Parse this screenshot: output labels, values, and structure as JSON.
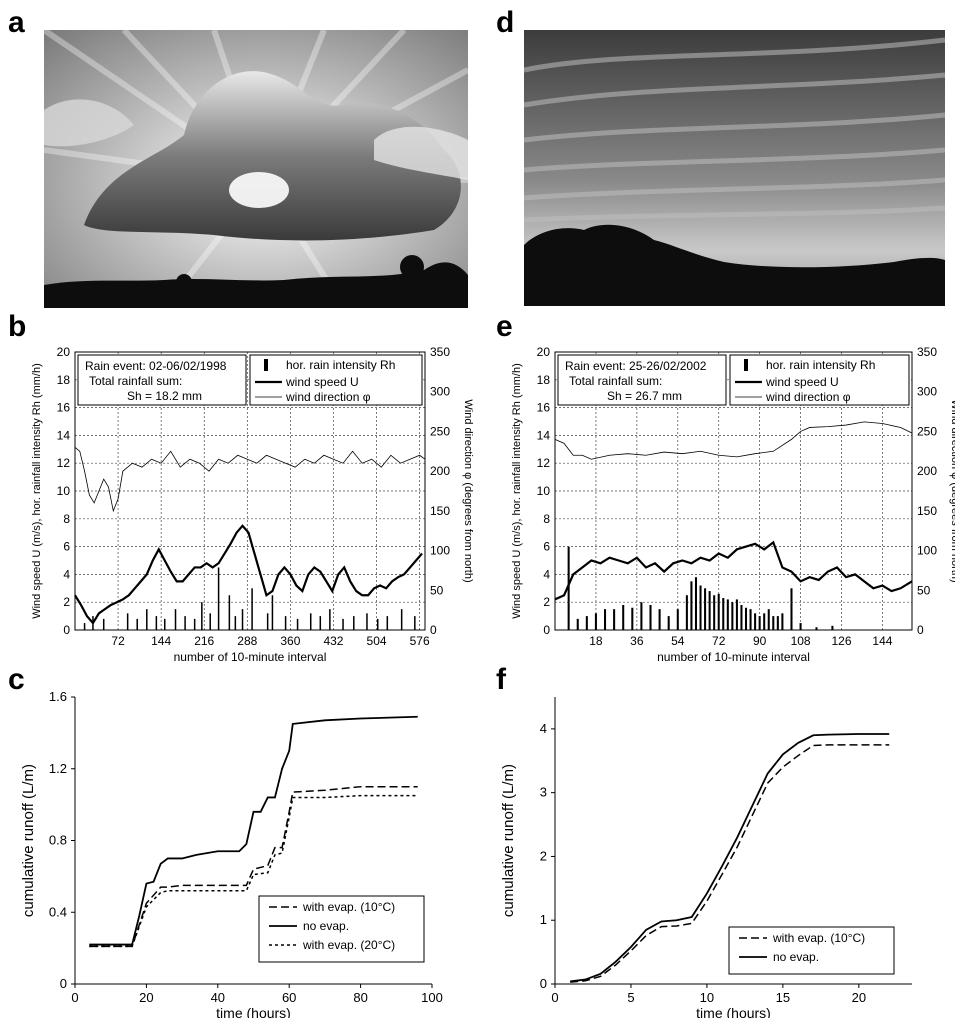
{
  "panel_letters": {
    "a": "a",
    "b": "b",
    "c": "c",
    "d": "d",
    "e": "e",
    "f": "f"
  },
  "photos": {
    "a": {
      "description_icon": "sky-with-sunrays-photo"
    },
    "d": {
      "description_icon": "stratus-cloud-sky-photo"
    }
  },
  "colors": {
    "ink": "#000000",
    "grid": "#444444",
    "bg": "#ffffff"
  },
  "chart_data": [
    {
      "id": "b",
      "type": "line",
      "xlabel": "number of 10-minute interval",
      "ylabel": "Wind speed U (m/s), hor. rainfall intensity Rh (mm/h)",
      "y2label": "Wind direction φ (degrees from north)",
      "xlim": [
        0,
        585
      ],
      "ylim": [
        0,
        20
      ],
      "y2lim": [
        0,
        350
      ],
      "xticks": [
        72,
        144,
        216,
        288,
        360,
        432,
        504,
        576
      ],
      "yticks": [
        0,
        2,
        4,
        6,
        8,
        10,
        12,
        14,
        16,
        18,
        20
      ],
      "y2ticks": [
        0,
        50,
        100,
        150,
        200,
        250,
        300,
        350
      ],
      "grid": true,
      "info_box": [
        "Rain event: 02-06/02/1998",
        "Total rainfall sum:",
        "Sh = 18.2 mm"
      ],
      "legend": [
        "hor. rain intensity Rh",
        "wind speed U",
        "wind direction φ"
      ],
      "series": [
        {
          "name": "wind speed U",
          "x": [
            0,
            10,
            20,
            30,
            40,
            50,
            60,
            70,
            80,
            90,
            100,
            110,
            120,
            130,
            140,
            150,
            160,
            170,
            180,
            190,
            200,
            210,
            220,
            230,
            240,
            250,
            260,
            270,
            280,
            290,
            300,
            310,
            320,
            330,
            340,
            350,
            360,
            370,
            380,
            390,
            400,
            410,
            420,
            430,
            440,
            450,
            460,
            470,
            480,
            490,
            500,
            510,
            520,
            530,
            540,
            550,
            560,
            570,
            580
          ],
          "y": [
            2.5,
            1.8,
            1.0,
            0.5,
            1.2,
            1.5,
            1.8,
            2.0,
            2.2,
            2.5,
            3.0,
            3.5,
            4.0,
            5.0,
            5.8,
            5.0,
            4.2,
            3.5,
            3.5,
            4.0,
            4.5,
            4.5,
            4.8,
            4.5,
            4.8,
            5.5,
            6.2,
            7.0,
            7.5,
            7.0,
            5.5,
            4.0,
            2.5,
            2.8,
            4.0,
            4.5,
            4.0,
            3.2,
            2.8,
            4.0,
            4.5,
            4.2,
            3.5,
            2.8,
            4.0,
            4.5,
            3.5,
            2.8,
            2.5,
            2.5,
            3.0,
            3.2,
            3.0,
            3.5,
            3.8,
            4.0,
            4.5,
            5.0,
            5.5
          ]
        },
        {
          "name": "wind direction φ",
          "x": [
            0,
            8,
            16,
            24,
            32,
            40,
            48,
            56,
            64,
            72,
            80,
            96,
            112,
            128,
            144,
            160,
            176,
            192,
            208,
            224,
            240,
            256,
            272,
            288,
            304,
            320,
            336,
            352,
            368,
            384,
            400,
            416,
            432,
            448,
            464,
            480,
            496,
            512,
            528,
            544,
            560,
            576,
            585
          ],
          "y": [
            230,
            225,
            200,
            170,
            160,
            175,
            190,
            180,
            150,
            165,
            200,
            210,
            205,
            215,
            210,
            225,
            205,
            215,
            210,
            200,
            215,
            210,
            220,
            215,
            210,
            220,
            215,
            210,
            205,
            215,
            210,
            220,
            215,
            210,
            225,
            210,
            215,
            205,
            220,
            210,
            215,
            220,
            215
          ]
        },
        {
          "name": "hor. rain intensity Rh",
          "x": [
            16,
            30,
            48,
            88,
            104,
            120,
            136,
            150,
            168,
            184,
            200,
            212,
            226,
            240,
            258,
            268,
            280,
            296,
            322,
            330,
            352,
            372,
            394,
            410,
            426,
            448,
            466,
            488,
            506,
            522,
            546,
            568
          ],
          "y": [
            0.5,
            1.0,
            0.8,
            1.2,
            0.8,
            1.5,
            1.0,
            0.8,
            1.5,
            1.0,
            0.8,
            2.0,
            1.2,
            4.5,
            2.5,
            1.0,
            1.5,
            3.0,
            1.2,
            2.5,
            1.0,
            0.8,
            1.2,
            1.0,
            1.5,
            0.8,
            1.0,
            1.2,
            0.8,
            1.0,
            1.5,
            1.0
          ]
        }
      ]
    },
    {
      "id": "c",
      "type": "line",
      "xlabel": "time (hours)",
      "ylabel": "cumulative runoff (L/m)",
      "xlim": [
        0,
        100
      ],
      "ylim": [
        0,
        1.6
      ],
      "xticks": [
        0,
        20,
        40,
        60,
        80,
        100
      ],
      "yticks": [
        0,
        0.4,
        0.8,
        1.2,
        1.6
      ],
      "grid": false,
      "series": [
        {
          "name": "with evap. (10°C)",
          "x": [
            4,
            16,
            20,
            24,
            26,
            30,
            40,
            48,
            50,
            54,
            56,
            58,
            60,
            61,
            70,
            80,
            96
          ],
          "y": [
            0.21,
            0.21,
            0.45,
            0.54,
            0.54,
            0.55,
            0.55,
            0.55,
            0.64,
            0.66,
            0.76,
            0.76,
            0.96,
            1.07,
            1.08,
            1.1,
            1.1
          ]
        },
        {
          "name": "no evap.",
          "x": [
            4,
            16,
            18,
            20,
            22,
            24,
            26,
            30,
            34,
            40,
            46,
            48,
            50,
            52,
            54,
            56,
            58,
            60,
            61,
            70,
            80,
            96
          ],
          "y": [
            0.22,
            0.22,
            0.38,
            0.56,
            0.57,
            0.67,
            0.7,
            0.7,
            0.72,
            0.74,
            0.74,
            0.78,
            0.96,
            0.96,
            1.04,
            1.04,
            1.2,
            1.3,
            1.45,
            1.47,
            1.48,
            1.49
          ]
        },
        {
          "name": "with evap. (20°C)",
          "x": [
            4,
            16,
            20,
            24,
            26,
            30,
            40,
            48,
            50,
            54,
            56,
            58,
            60,
            61,
            70,
            80,
            96
          ],
          "y": [
            0.21,
            0.21,
            0.43,
            0.51,
            0.52,
            0.52,
            0.52,
            0.52,
            0.61,
            0.62,
            0.72,
            0.73,
            0.93,
            1.04,
            1.04,
            1.05,
            1.05
          ]
        }
      ]
    },
    {
      "id": "e",
      "type": "line",
      "xlabel": "number of 10-minute interval",
      "ylabel": "Wind speed U (m/s), hor. rainfall intensity Rh (mm/h)",
      "y2label": "Wind direction φ (degrees from north)",
      "xlim": [
        0,
        157
      ],
      "ylim": [
        0,
        20
      ],
      "y2lim": [
        0,
        350
      ],
      "xticks": [
        18,
        36,
        54,
        72,
        90,
        108,
        126,
        144
      ],
      "yticks": [
        0,
        2,
        4,
        6,
        8,
        10,
        12,
        14,
        16,
        18,
        20
      ],
      "y2ticks": [
        0,
        50,
        100,
        150,
        200,
        250,
        300,
        350
      ],
      "grid": true,
      "info_box": [
        "Rain event: 25-26/02/2002",
        "Total rainfall sum:",
        "Sh = 26.7 mm"
      ],
      "legend": [
        "hor. rain intensity Rh",
        "wind speed U",
        "wind direction φ"
      ],
      "series": [
        {
          "name": "wind speed U",
          "x": [
            0,
            4,
            8,
            12,
            16,
            20,
            24,
            28,
            32,
            36,
            40,
            44,
            48,
            52,
            56,
            60,
            64,
            68,
            72,
            76,
            80,
            84,
            88,
            92,
            96,
            100,
            104,
            108,
            112,
            116,
            120,
            124,
            128,
            132,
            136,
            140,
            144,
            148,
            152,
            157
          ],
          "y": [
            2.2,
            2.5,
            4.0,
            4.5,
            5.0,
            4.8,
            5.2,
            5.0,
            4.8,
            5.2,
            4.5,
            4.8,
            4.2,
            4.8,
            5.0,
            4.8,
            5.2,
            5.0,
            5.5,
            5.2,
            5.8,
            6.0,
            6.2,
            5.8,
            6.3,
            4.5,
            4.2,
            3.5,
            3.8,
            3.6,
            4.2,
            4.5,
            3.8,
            4.0,
            3.5,
            3.0,
            3.2,
            2.8,
            3.0,
            3.5
          ]
        },
        {
          "name": "wind direction φ",
          "x": [
            0,
            4,
            8,
            12,
            16,
            24,
            32,
            40,
            48,
            56,
            64,
            72,
            80,
            88,
            96,
            104,
            108,
            112,
            120,
            128,
            136,
            144,
            152,
            157
          ],
          "y": [
            240,
            235,
            220,
            220,
            215,
            220,
            222,
            220,
            224,
            222,
            225,
            220,
            218,
            222,
            225,
            240,
            250,
            255,
            256,
            258,
            262,
            260,
            255,
            248
          ]
        },
        {
          "name": "hor. rain intensity Rh",
          "x": [
            6,
            10,
            14,
            18,
            22,
            26,
            30,
            34,
            38,
            42,
            46,
            50,
            54,
            58,
            60,
            62,
            64,
            66,
            68,
            70,
            72,
            74,
            76,
            78,
            80,
            82,
            84,
            86,
            88,
            90,
            92,
            94,
            96,
            98,
            100,
            104,
            108,
            115,
            122
          ],
          "y": [
            6.0,
            0.8,
            1.0,
            1.2,
            1.5,
            1.5,
            1.8,
            1.6,
            2.0,
            1.8,
            1.5,
            1.0,
            1.5,
            2.5,
            3.5,
            3.8,
            3.2,
            3.0,
            2.8,
            2.5,
            2.6,
            2.3,
            2.2,
            2.0,
            2.2,
            1.8,
            1.6,
            1.5,
            1.2,
            1.0,
            1.2,
            1.5,
            1.0,
            1.0,
            1.2,
            3.0,
            0.5,
            0.2,
            0.3
          ]
        }
      ]
    },
    {
      "id": "f",
      "type": "line",
      "xlabel": "time (hours)",
      "ylabel": "cumulative runoff (L/m)",
      "xlim": [
        0,
        23.5
      ],
      "ylim": [
        0,
        4.5
      ],
      "xticks": [
        0,
        5,
        10,
        15,
        20
      ],
      "yticks": [
        0,
        1,
        2,
        3,
        4
      ],
      "grid": false,
      "series": [
        {
          "name": "with evap. (10°C)",
          "x": [
            1,
            2,
            3,
            4,
            5,
            6,
            7,
            8,
            9,
            10,
            11,
            12,
            13,
            14,
            15,
            16,
            17,
            18,
            20,
            22
          ],
          "y": [
            0.03,
            0.05,
            0.12,
            0.3,
            0.52,
            0.76,
            0.9,
            0.91,
            0.95,
            1.3,
            1.72,
            2.15,
            2.65,
            3.15,
            3.4,
            3.58,
            3.74,
            3.75,
            3.75,
            3.75
          ]
        },
        {
          "name": "no evap.",
          "x": [
            1,
            2,
            3,
            4,
            5,
            6,
            7,
            8,
            9,
            10,
            11,
            12,
            13,
            14,
            15,
            16,
            17,
            18,
            20,
            22
          ],
          "y": [
            0.04,
            0.07,
            0.16,
            0.35,
            0.58,
            0.85,
            0.98,
            1.0,
            1.05,
            1.42,
            1.85,
            2.3,
            2.8,
            3.3,
            3.6,
            3.78,
            3.9,
            3.91,
            3.92,
            3.92
          ]
        }
      ]
    }
  ]
}
